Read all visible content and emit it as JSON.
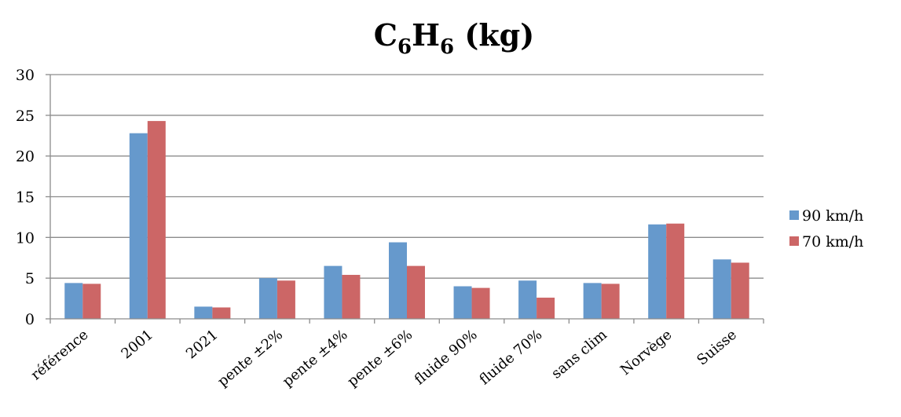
{
  "chart_data": {
    "type": "bar",
    "title": {
      "parts": [
        {
          "text": "C",
          "sub": false
        },
        {
          "text": "6",
          "sub": true
        },
        {
          "text": "H",
          "sub": false
        },
        {
          "text": "6",
          "sub": true
        },
        {
          "text": " (kg)",
          "sub": false
        }
      ]
    },
    "categories": [
      "référence",
      "2001",
      "2021",
      "pente ±2%",
      "pente ±4%",
      "pente ±6%",
      "fluide 90%",
      "fluide 70%",
      "sans clim",
      "Norvège",
      "Suisse"
    ],
    "series": [
      {
        "name": "90 km/h",
        "color": "#6699CC",
        "values": [
          4.4,
          22.8,
          1.5,
          5.0,
          6.5,
          9.4,
          4.0,
          4.7,
          4.4,
          11.6,
          7.3
        ]
      },
      {
        "name": "70 km/h",
        "color": "#CC6666",
        "values": [
          4.3,
          24.3,
          1.4,
          4.7,
          5.4,
          6.5,
          3.8,
          2.6,
          4.3,
          11.7,
          6.9
        ]
      }
    ],
    "ylim": [
      0,
      30
    ],
    "yticks": [
      0,
      5,
      10,
      15,
      20,
      25,
      30
    ],
    "grid": true,
    "legend_position": "right",
    "xlabel": "",
    "ylabel": ""
  }
}
